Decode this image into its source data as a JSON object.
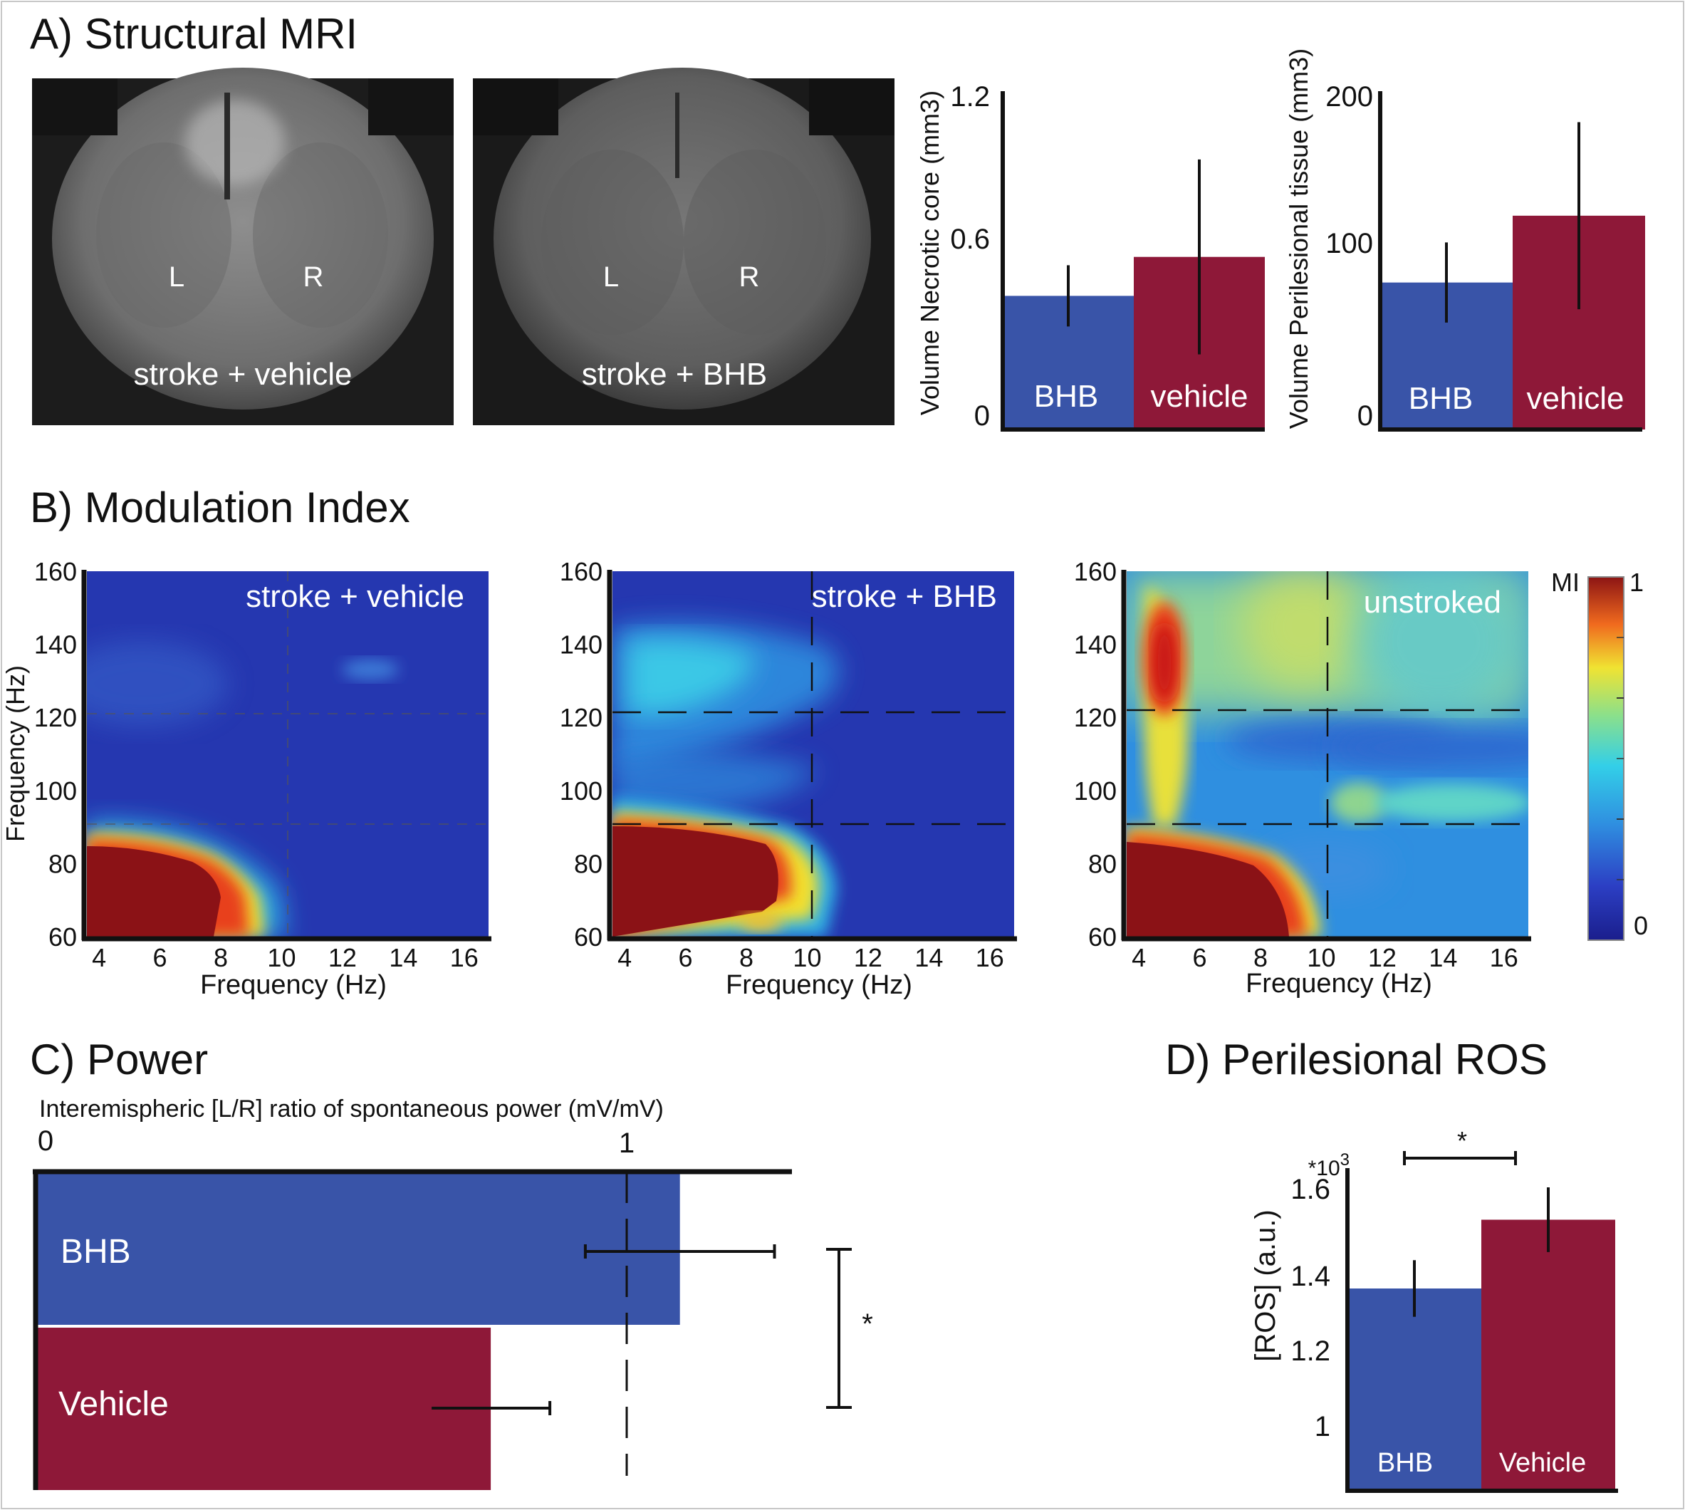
{
  "panels": {
    "A": "A) Structural MRI",
    "B": "B) Modulation Index",
    "C": "C) Power",
    "D": "D) Perilesional ROS"
  },
  "colors": {
    "bhb": "#3954a8",
    "vehicle": "#8e1838"
  },
  "mri": [
    {
      "label": "stroke + vehicle",
      "left": "L",
      "right": "R"
    },
    {
      "label": "stroke + BHB",
      "left": "L",
      "right": "R"
    }
  ],
  "chart_data": [
    {
      "id": "necrotic",
      "type": "bar",
      "ylabel": "Volume Necrotic core (mm3)",
      "yticks": [
        "1.2",
        "0.6",
        "0"
      ],
      "ylim": [
        0,
        1.2
      ],
      "categories": [
        "BHB",
        "vehicle"
      ],
      "values": [
        0.48,
        0.62
      ],
      "errors": [
        0.11,
        0.35
      ]
    },
    {
      "id": "perilesional",
      "type": "bar",
      "ylabel": "Volume Perilesional tissue (mm3)",
      "yticks": [
        "200",
        "100",
        "0"
      ],
      "ylim": [
        0,
        200
      ],
      "categories": [
        "BHB",
        "vehicle"
      ],
      "values": [
        88,
        128
      ],
      "errors": [
        24,
        56
      ]
    },
    {
      "id": "mi",
      "type": "heatmap",
      "colorbar_label": "MI",
      "colorbar_ticks": [
        "1",
        "0"
      ],
      "zlim": [
        0,
        1
      ],
      "xlabel": "Frequency (Hz)",
      "ylabel": "Frequency (Hz)",
      "xticks": [
        "4",
        "6",
        "8",
        "10",
        "12",
        "14",
        "16"
      ],
      "yticks": [
        "160",
        "140",
        "120",
        "100",
        "80",
        "60"
      ],
      "xlim": [
        3.6,
        16.8
      ],
      "ylim": [
        60,
        160
      ],
      "maps": [
        "stroke + vehicle",
        "stroke + BHB",
        "unstroked"
      ]
    },
    {
      "id": "power",
      "type": "bar",
      "orientation": "horizontal",
      "title": "Interemispheric [L/R] ratio of spontaneous power (mV/mV)",
      "xticks": [
        "0",
        "1"
      ],
      "xlim": [
        0,
        1.3
      ],
      "categories": [
        "BHB",
        "Vehicle"
      ],
      "values": [
        1.09,
        0.77
      ],
      "errors": [
        0.16,
        0.1
      ],
      "significance": "*"
    },
    {
      "id": "ros",
      "type": "bar",
      "ylabel": "[ROS] (a.u.)",
      "multiplier": "*10",
      "multiplier_exp": "3",
      "yticks": [
        "1.6",
        "1.4",
        "1.2",
        "1"
      ],
      "ylim": [
        0.85,
        1.6
      ],
      "categories": [
        "BHB",
        "Vehicle"
      ],
      "values": [
        1.35,
        1.52
      ],
      "errors": [
        0.07,
        0.08
      ],
      "significance": "*"
    }
  ]
}
